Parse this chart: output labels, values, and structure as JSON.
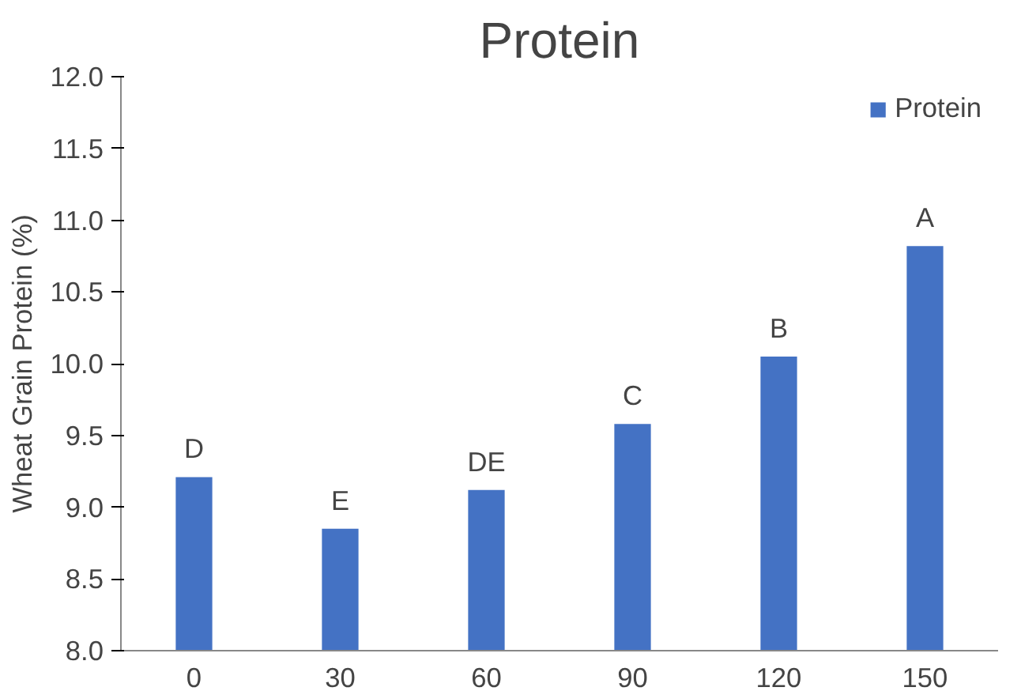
{
  "chart_data": {
    "type": "bar",
    "title": "Protein",
    "ylabel": "Wheat Grain Protein (%)",
    "categories": [
      "0",
      "30",
      "60",
      "90",
      "120",
      "150"
    ],
    "series": [
      {
        "name": "Protein",
        "color": "#4472c4",
        "values": [
          9.21,
          8.85,
          9.12,
          9.58,
          10.05,
          10.82
        ]
      }
    ],
    "ylim": [
      8.0,
      12.0
    ],
    "yticks": [
      {
        "value": 8.0,
        "label": "8.0"
      },
      {
        "value": 8.5,
        "label": "8.5"
      },
      {
        "value": 9.0,
        "label": "9.0"
      },
      {
        "value": 9.5,
        "label": "9.5"
      },
      {
        "value": 10.0,
        "label": "10.0"
      },
      {
        "value": 10.5,
        "label": "10.5"
      },
      {
        "value": 11.0,
        "label": "11.0"
      },
      {
        "value": 11.5,
        "label": "11.5"
      },
      {
        "value": 12.0,
        "label": "12.0"
      }
    ],
    "annotations": [
      {
        "text": "D",
        "x": "0",
        "y": 9.21
      },
      {
        "text": "E",
        "x": "30",
        "y": 8.85
      },
      {
        "text": "DE",
        "x": "60",
        "y": 9.12
      },
      {
        "text": "C",
        "x": "90",
        "y": 9.58
      },
      {
        "text": "B",
        "x": "120",
        "y": 10.05
      },
      {
        "text": "A",
        "x": "150",
        "y": 10.82
      }
    ],
    "legend": "top right",
    "grid": false
  }
}
